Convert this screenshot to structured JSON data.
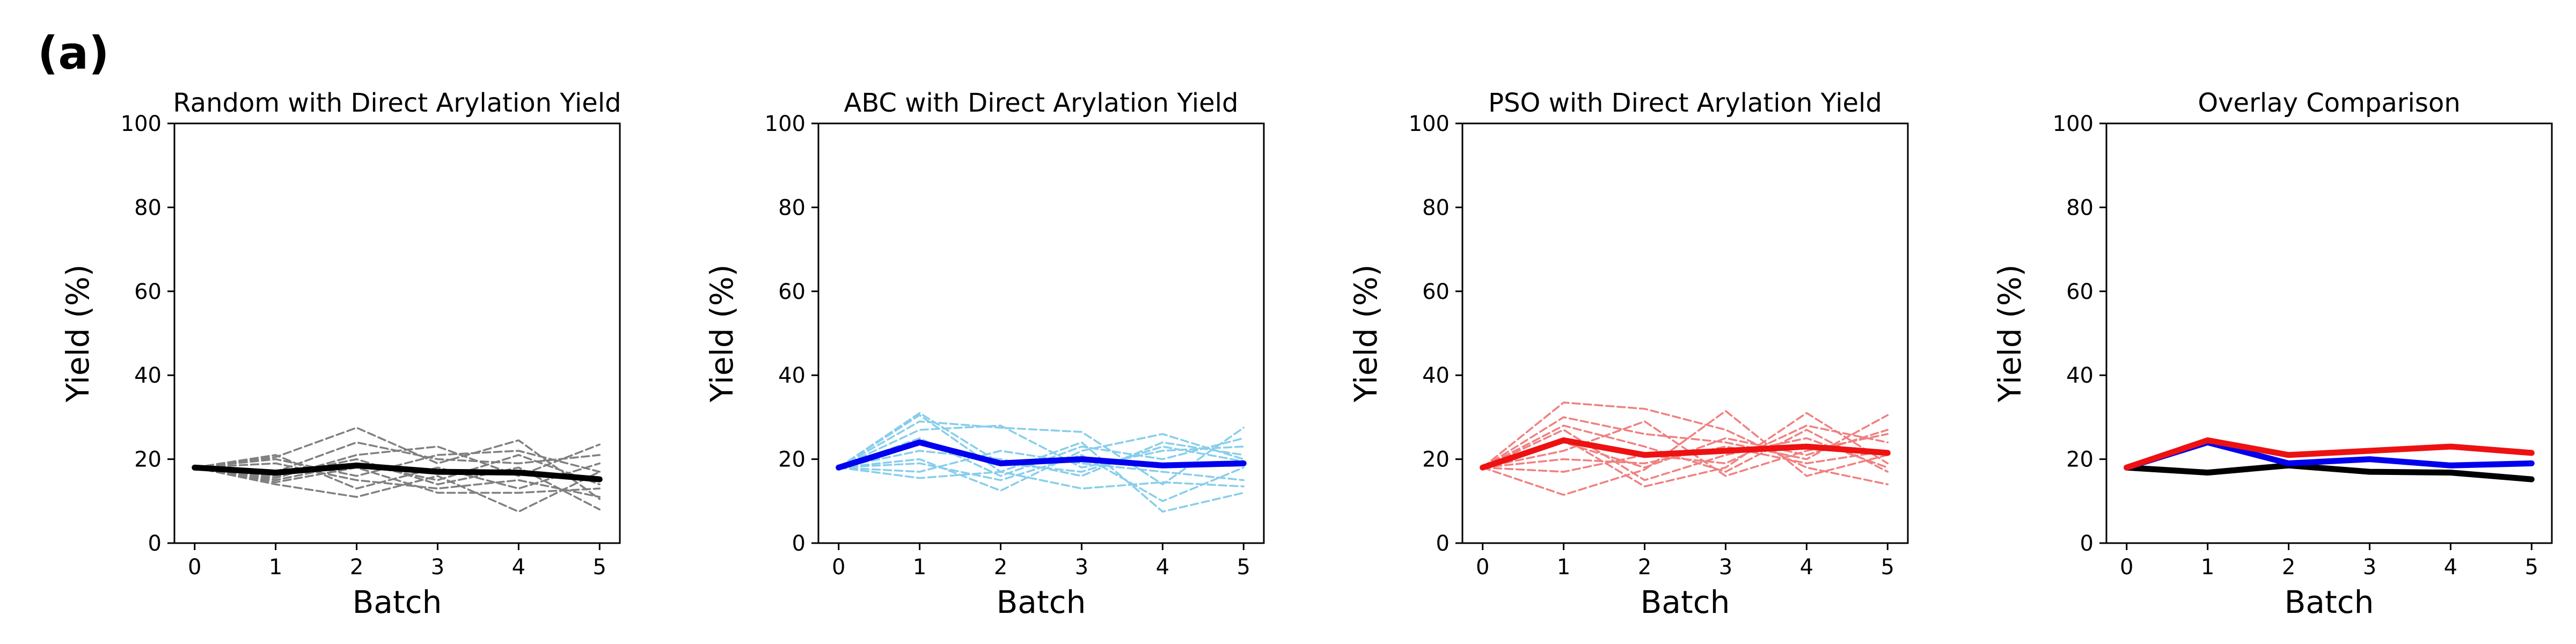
{
  "figure": {
    "panel_label": "(a)"
  },
  "colors": {
    "random": "#000000",
    "random_runs": "#808080",
    "abc": "#0000ee",
    "abc_runs": "#87ceeb",
    "pso": "#ee1111",
    "pso_runs": "#f08080"
  },
  "chart_data": [
    {
      "type": "line",
      "title": "Random with Direct Arylation Yield",
      "xlabel": "Batch",
      "ylabel": "Yield (%)",
      "x": [
        0,
        1,
        2,
        3,
        4,
        5
      ],
      "xticks": [
        "0",
        "1",
        "2",
        "3",
        "4",
        "5"
      ],
      "yticks": [
        "0",
        "20",
        "40",
        "60",
        "80",
        "100"
      ],
      "ylim": [
        0,
        100
      ],
      "xlim": [
        -0.25,
        5.25
      ],
      "series": [
        {
          "style": "mean",
          "color": "#000000",
          "values": [
            18,
            16.8,
            18.5,
            17,
            16.8,
            15.2
          ]
        },
        {
          "style": "run",
          "color": "#808080",
          "values": [
            18,
            20.5,
            27.5,
            19,
            24.5,
            10.5
          ]
        },
        {
          "style": "run",
          "color": "#808080",
          "values": [
            18,
            14,
            11,
            16,
            7.5,
            17
          ]
        },
        {
          "style": "run",
          "color": "#808080",
          "values": [
            18,
            15.5,
            21,
            23,
            16,
            23.5
          ]
        },
        {
          "style": "run",
          "color": "#808080",
          "values": [
            18,
            19,
            15,
            13,
            15,
            11
          ]
        },
        {
          "style": "run",
          "color": "#808080",
          "values": [
            18,
            17,
            24,
            20,
            19,
            21
          ]
        },
        {
          "style": "run",
          "color": "#808080",
          "values": [
            18,
            14.5,
            18,
            12,
            12,
            13
          ]
        },
        {
          "style": "run",
          "color": "#808080",
          "values": [
            18,
            20,
            16,
            21,
            22,
            17
          ]
        },
        {
          "style": "run",
          "color": "#808080",
          "values": [
            18,
            16,
            20,
            14,
            18,
            8
          ]
        },
        {
          "style": "run",
          "color": "#808080",
          "values": [
            18,
            21,
            13,
            18,
            13,
            19
          ]
        },
        {
          "style": "run",
          "color": "#808080",
          "values": [
            18,
            15,
            19,
            15,
            21,
            14
          ]
        }
      ]
    },
    {
      "type": "line",
      "title": "ABC with Direct Arylation Yield",
      "xlabel": "Batch",
      "ylabel": "Yield (%)",
      "x": [
        0,
        1,
        2,
        3,
        4,
        5
      ],
      "xticks": [
        "0",
        "1",
        "2",
        "3",
        "4",
        "5"
      ],
      "yticks": [
        "0",
        "20",
        "40",
        "60",
        "80",
        "100"
      ],
      "ylim": [
        0,
        100
      ],
      "xlim": [
        -0.25,
        5.25
      ],
      "series": [
        {
          "style": "mean",
          "color": "#0000ee",
          "values": [
            18,
            24,
            19,
            20,
            18.5,
            19
          ]
        },
        {
          "style": "run",
          "color": "#87ceeb",
          "values": [
            18,
            30.5,
            17,
            24,
            7.5,
            12
          ]
        },
        {
          "style": "run",
          "color": "#87ceeb",
          "values": [
            18,
            29,
            27.5,
            26.5,
            14,
            27.5
          ]
        },
        {
          "style": "run",
          "color": "#87ceeb",
          "values": [
            18,
            20,
            12.5,
            22,
            26,
            20
          ]
        },
        {
          "style": "run",
          "color": "#87ceeb",
          "values": [
            18,
            15.5,
            17,
            13,
            14.5,
            13.5
          ]
        },
        {
          "style": "run",
          "color": "#87ceeb",
          "values": [
            18,
            27,
            28,
            18,
            22,
            23
          ]
        },
        {
          "style": "run",
          "color": "#87ceeb",
          "values": [
            18,
            19,
            15,
            21,
            10,
            18
          ]
        },
        {
          "style": "run",
          "color": "#87ceeb",
          "values": [
            18,
            22,
            20,
            16,
            24,
            21
          ]
        },
        {
          "style": "run",
          "color": "#87ceeb",
          "values": [
            18,
            17,
            22,
            19,
            17,
            15
          ]
        },
        {
          "style": "run",
          "color": "#87ceeb",
          "values": [
            18,
            25,
            16,
            23,
            20,
            25
          ]
        },
        {
          "style": "run",
          "color": "#87ceeb",
          "values": [
            18,
            31,
            19,
            17,
            23,
            19.5
          ]
        }
      ]
    },
    {
      "type": "line",
      "title": "PSO with Direct Arylation Yield",
      "xlabel": "Batch",
      "ylabel": "Yield (%)",
      "x": [
        0,
        1,
        2,
        3,
        4,
        5
      ],
      "xticks": [
        "0",
        "1",
        "2",
        "3",
        "4",
        "5"
      ],
      "yticks": [
        "0",
        "20",
        "40",
        "60",
        "80",
        "100"
      ],
      "ylim": [
        0,
        100
      ],
      "xlim": [
        -0.25,
        5.25
      ],
      "series": [
        {
          "style": "mean",
          "color": "#ee1111",
          "values": [
            18,
            24.5,
            21,
            22,
            23,
            21.5
          ]
        },
        {
          "style": "run",
          "color": "#f08080",
          "values": [
            18,
            33.5,
            32,
            27,
            18,
            14
          ]
        },
        {
          "style": "run",
          "color": "#f08080",
          "values": [
            18,
            11.5,
            17.5,
            31.5,
            16,
            21
          ]
        },
        {
          "style": "run",
          "color": "#f08080",
          "values": [
            18,
            25,
            13.5,
            18,
            31,
            19
          ]
        },
        {
          "style": "run",
          "color": "#f08080",
          "values": [
            18,
            30,
            26,
            24,
            20,
            30.5
          ]
        },
        {
          "style": "run",
          "color": "#f08080",
          "values": [
            18,
            17,
            21,
            19,
            28,
            24
          ]
        },
        {
          "style": "run",
          "color": "#f08080",
          "values": [
            18,
            22,
            29,
            16,
            22,
            26
          ]
        },
        {
          "style": "run",
          "color": "#f08080",
          "values": [
            18,
            27,
            15,
            21,
            25,
            18
          ]
        },
        {
          "style": "run",
          "color": "#f08080",
          "values": [
            18,
            20,
            19,
            23,
            19,
            22
          ]
        },
        {
          "style": "run",
          "color": "#f08080",
          "values": [
            18,
            28,
            23,
            17,
            27,
            17
          ]
        },
        {
          "style": "run",
          "color": "#f08080",
          "values": [
            18,
            24,
            18,
            25,
            21,
            27
          ]
        }
      ]
    },
    {
      "type": "line",
      "title": "Overlay Comparison",
      "xlabel": "Batch",
      "ylabel": "Yield (%)",
      "x": [
        0,
        1,
        2,
        3,
        4,
        5
      ],
      "xticks": [
        "0",
        "1",
        "2",
        "3",
        "4",
        "5"
      ],
      "yticks": [
        "0",
        "20",
        "40",
        "60",
        "80",
        "100"
      ],
      "ylim": [
        0,
        100
      ],
      "xlim": [
        -0.25,
        5.25
      ],
      "series": [
        {
          "style": "mean",
          "color": "#000000",
          "values": [
            18,
            16.8,
            18.5,
            17,
            16.8,
            15.2
          ]
        },
        {
          "style": "mean",
          "color": "#0000ee",
          "values": [
            18,
            24,
            19,
            20,
            18.5,
            19
          ]
        },
        {
          "style": "mean",
          "color": "#ee1111",
          "values": [
            18,
            24.5,
            21,
            22,
            23,
            21.5
          ]
        }
      ]
    }
  ]
}
